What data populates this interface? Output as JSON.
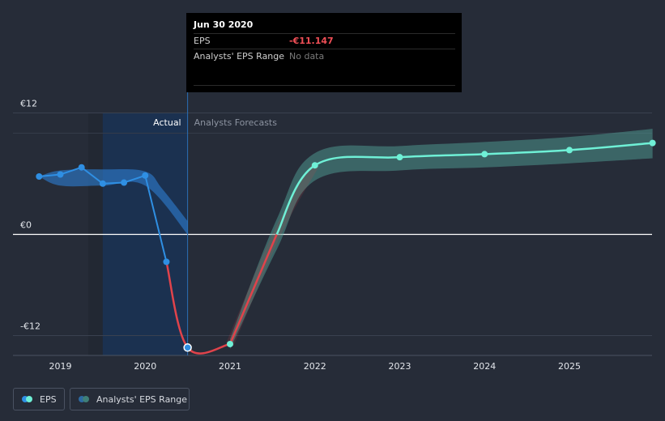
{
  "chart_data": {
    "type": "line",
    "title": "",
    "currency_symbol": "€",
    "y_ticks": [
      {
        "value": 12,
        "label": "€12"
      },
      {
        "value": 0,
        "label": "€0"
      },
      {
        "value": -12,
        "label": "-€12"
      }
    ],
    "ylim": [
      -13.2,
      12
    ],
    "x_ticks": [
      {
        "value": 2019,
        "label": "2019"
      },
      {
        "value": 2020,
        "label": "2020"
      },
      {
        "value": 2021,
        "label": "2021"
      },
      {
        "value": 2022,
        "label": "2022"
      },
      {
        "value": 2023,
        "label": "2023"
      },
      {
        "value": 2024,
        "label": "2024"
      },
      {
        "value": 2025,
        "label": "2025"
      }
    ],
    "xlim": [
      2018.58,
      2025.98
    ],
    "actual_label": "Actual",
    "forecast_label": "Analysts Forecasts",
    "divider_x": 2020.5,
    "actual_shade_start": 2019.5,
    "series": [
      {
        "name": "EPS actual",
        "color": "#2f8fe3",
        "points": [
          [
            2018.75,
            5.7
          ],
          [
            2019.0,
            5.9
          ],
          [
            2019.25,
            6.6
          ],
          [
            2019.5,
            5.0
          ],
          [
            2019.75,
            5.1
          ],
          [
            2020.0,
            5.8
          ],
          [
            2020.25,
            -2.7
          ]
        ]
      },
      {
        "name": "EPS actual negative",
        "color": "#e0434b",
        "points": [
          [
            2020.25,
            -2.7
          ],
          [
            2020.5,
            -11.147
          ],
          [
            2021.0,
            -10.8
          ]
        ]
      },
      {
        "name": "EPS forecast",
        "color": "#e0434b",
        "pos_color": "#6ff0d6",
        "points": [
          [
            2021.0,
            -10.8
          ],
          [
            2021.55,
            0
          ],
          [
            2022.0,
            6.8
          ],
          [
            2023.0,
            7.6
          ],
          [
            2024.0,
            7.9
          ],
          [
            2025.0,
            8.3
          ],
          [
            2025.98,
            9.0
          ]
        ]
      }
    ],
    "range_actual": {
      "upper": [
        [
          2018.75,
          5.7
        ],
        [
          2019.0,
          6.3
        ],
        [
          2019.5,
          6.4
        ],
        [
          2020.0,
          6.2
        ],
        [
          2020.2,
          4.5
        ],
        [
          2020.5,
          1.3
        ]
      ],
      "lower": [
        [
          2018.75,
          5.7
        ],
        [
          2019.0,
          4.8
        ],
        [
          2019.5,
          4.8
        ],
        [
          2020.0,
          4.8
        ],
        [
          2020.5,
          0.0
        ]
      ]
    },
    "range_forecast": {
      "upper": [
        [
          2021.0,
          -10.3
        ],
        [
          2021.55,
          1.5
        ],
        [
          2022.0,
          8.0
        ],
        [
          2023.0,
          8.7
        ],
        [
          2024.0,
          9.1
        ],
        [
          2025.0,
          9.6
        ],
        [
          2025.98,
          10.4
        ]
      ],
      "lower": [
        [
          2021.0,
          -11.3
        ],
        [
          2021.55,
          -1.5
        ],
        [
          2022.0,
          5.3
        ],
        [
          2023.0,
          6.3
        ],
        [
          2024.0,
          6.6
        ],
        [
          2025.0,
          7.0
        ],
        [
          2025.98,
          7.5
        ]
      ]
    },
    "markers": [
      {
        "x": 2018.75,
        "y": 5.7,
        "color": "#2f8fe3"
      },
      {
        "x": 2019.0,
        "y": 5.9,
        "color": "#2f8fe3"
      },
      {
        "x": 2019.25,
        "y": 6.6,
        "color": "#2f8fe3"
      },
      {
        "x": 2019.5,
        "y": 5.0,
        "color": "#2f8fe3"
      },
      {
        "x": 2019.75,
        "y": 5.1,
        "color": "#2f8fe3"
      },
      {
        "x": 2020.0,
        "y": 5.8,
        "color": "#2f8fe3"
      },
      {
        "x": 2020.25,
        "y": -2.7,
        "color": "#2f8fe3"
      },
      {
        "x": 2020.5,
        "y": -11.147,
        "color": "#2f8fe3",
        "highlight": true
      },
      {
        "x": 2021.0,
        "y": -10.8,
        "color": "#6ff0d6"
      },
      {
        "x": 2022.0,
        "y": 6.8,
        "color": "#6ff0d6"
      },
      {
        "x": 2023.0,
        "y": 7.6,
        "color": "#6ff0d6"
      },
      {
        "x": 2024.0,
        "y": 7.9,
        "color": "#6ff0d6"
      },
      {
        "x": 2025.0,
        "y": 8.3,
        "color": "#6ff0d6"
      },
      {
        "x": 2025.98,
        "y": 9.0,
        "color": "#6ff0d6"
      }
    ]
  },
  "tooltip": {
    "date": "Jun 30 2020",
    "eps_label": "EPS",
    "eps_value": "-€11.147",
    "range_label": "Analysts' EPS Range",
    "range_value": "No data"
  },
  "legend": {
    "eps_label": "EPS",
    "range_label": "Analysts' EPS Range"
  }
}
